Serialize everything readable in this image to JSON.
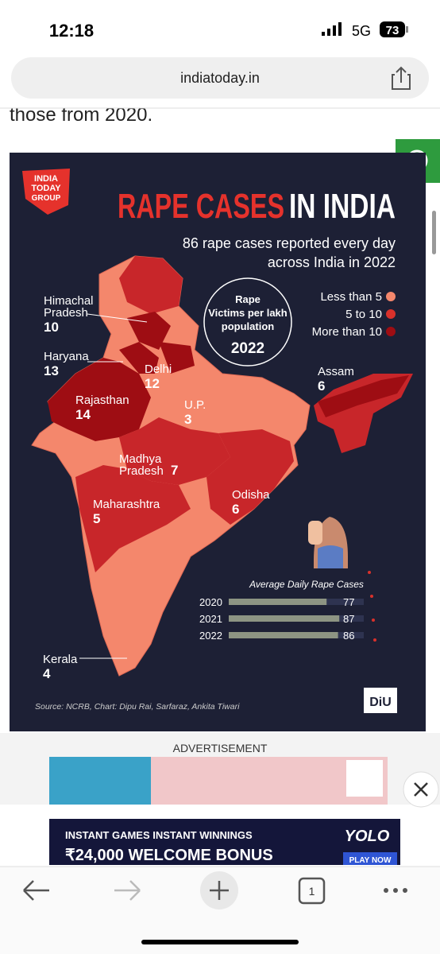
{
  "status_bar": {
    "time": "12:18",
    "network": "5G",
    "battery": "73"
  },
  "address_bar": {
    "url": "indiatoday.in"
  },
  "article": {
    "text_fragment": "those from 2020."
  },
  "infographic": {
    "brand": [
      "INDIA",
      "TODAY",
      "GROUP"
    ],
    "title_part1": "RAPE CASES",
    "title_part2": "IN INDIA",
    "subtitle": [
      "86 rape cases reported every day",
      "across India in 2022"
    ],
    "legend_title": [
      "Rape",
      "Victims per lakh",
      "population"
    ],
    "legend_year": "2022",
    "legend": [
      {
        "label": "Less than 5",
        "color": "#f4876c"
      },
      {
        "label": "5 to 10",
        "color": "#d9312b"
      },
      {
        "label": "More than 10",
        "color": "#9e0d13"
      }
    ],
    "states": [
      {
        "name_lines": [
          "Himachal",
          "Pradesh"
        ],
        "value": 10
      },
      {
        "name_lines": [
          "Haryana"
        ],
        "value": 13
      },
      {
        "name_lines": [
          "Delhi"
        ],
        "value": 12
      },
      {
        "name_lines": [
          "Rajasthan"
        ],
        "value": 14
      },
      {
        "name_lines": [
          "U.P."
        ],
        "value": 3
      },
      {
        "name_lines": [
          "Madhya",
          "Pradesh"
        ],
        "value": 7
      },
      {
        "name_lines": [
          "Odisha"
        ],
        "value": 6
      },
      {
        "name_lines": [
          "Maharashtra"
        ],
        "value": 5
      },
      {
        "name_lines": [
          "Assam"
        ],
        "value": 6
      },
      {
        "name_lines": [
          "Kerala"
        ],
        "value": 4
      }
    ],
    "bar_chart": {
      "title": "Average Daily Rape Cases",
      "categories": [
        "2020",
        "2021",
        "2022"
      ],
      "values": [
        77,
        87,
        86
      ]
    },
    "source": "Source: NCRB, Chart: Dipu Rai, Sarfaraz, Ankita Tiwari",
    "logo": "DiU"
  },
  "advertisement": {
    "label": "ADVERTISEMENT"
  },
  "bottom_ad": {
    "line1": "INSTANT GAMES INSTANT WINNINGS",
    "line2": "₹24,000 WELCOME BONUS",
    "brand": "YOLO",
    "button": "PLAY NOW"
  },
  "toolbar": {
    "tabs": "1"
  }
}
